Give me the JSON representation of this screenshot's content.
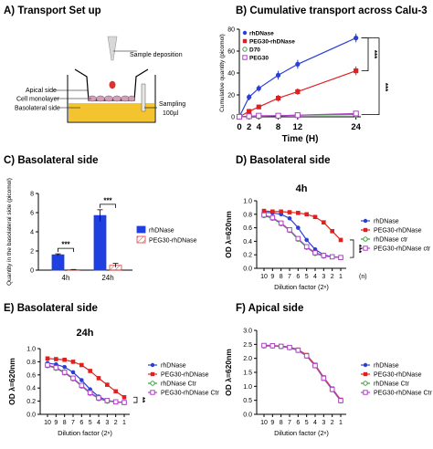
{
  "panels": {
    "A": {
      "title": "A) Transport Set up"
    },
    "B": {
      "title": "B) Cumulative transport across Calu-3"
    },
    "C": {
      "title": "C) Basolateral side"
    },
    "D": {
      "title": "D) Basolateral side"
    },
    "E": {
      "title": "E) Basolateral side"
    },
    "F": {
      "title": "F) Apical side"
    }
  },
  "schematic": {
    "sample_deposition": "Sample deposition",
    "apical_side": "Apical side",
    "cell_monolayer": "Cell monolayer",
    "basolateral_side": "Basolateral side",
    "sampling": "Sampling",
    "sampling_volume": "100µl",
    "colors": {
      "medium": "#f4c430",
      "drop": "#d9342b",
      "cells": "#cfa0b8"
    }
  },
  "chart_data": [
    {
      "id": "B",
      "type": "line",
      "title": "",
      "xlabel": "Time  (H)",
      "ylabel": "Cumulative quantity (picomol)",
      "xticks": [
        0,
        2,
        4,
        8,
        12,
        24
      ],
      "yticks": [
        0,
        20,
        40,
        60,
        80
      ],
      "xlim": [
        0,
        25
      ],
      "ylim": [
        0,
        80
      ],
      "legend_position": "top-left",
      "annotations": [
        "***",
        "***"
      ],
      "x": [
        0,
        2,
        4,
        8,
        12,
        24
      ],
      "series": [
        {
          "name": "rhDNase",
          "color": "#2b3fd6",
          "marker": "circle",
          "values": [
            0,
            18,
            26,
            38,
            48,
            72
          ],
          "errors": [
            1,
            3,
            3,
            4,
            4,
            4
          ]
        },
        {
          "name": "PEG30-rhDNase",
          "color": "#e02020",
          "marker": "square",
          "values": [
            0,
            5,
            9,
            17,
            23,
            42
          ],
          "errors": [
            0.5,
            1.5,
            2,
            3,
            3,
            4
          ]
        },
        {
          "name": "D70",
          "color": "#3aa13a",
          "marker": "circle-open",
          "values": [
            0,
            0.5,
            0.5,
            1,
            1.5,
            2
          ],
          "errors": [
            0,
            0,
            0,
            0,
            0,
            0
          ]
        },
        {
          "name": "PEG30",
          "color": "#b040c8",
          "marker": "square-open",
          "values": [
            0,
            0.5,
            1,
            1,
            1.5,
            3
          ],
          "errors": [
            0,
            0,
            0,
            0,
            0,
            0
          ]
        }
      ]
    },
    {
      "id": "C",
      "type": "bar",
      "title": "",
      "xlabel": "",
      "ylabel": "Quantity in the basolateral side (picomol)",
      "categories": [
        "4h",
        "24h"
      ],
      "yticks": [
        0,
        2,
        4,
        6,
        8
      ],
      "ylim": [
        0,
        8
      ],
      "legend_position": "right",
      "annotations": [
        "***",
        "***"
      ],
      "series": [
        {
          "name": "rhDNase",
          "color": "#1f3fe0",
          "fill": "solid",
          "values": [
            1.6,
            5.7
          ],
          "errors": [
            0.1,
            0.6
          ]
        },
        {
          "name": "PEG30-rhDNase",
          "color": "#e04040",
          "fill": "hatched",
          "values": [
            0.05,
            0.5
          ],
          "errors": [
            0.02,
            0.2
          ]
        }
      ]
    },
    {
      "id": "D",
      "type": "line",
      "title": "4h",
      "xlabel": "Dilution factor (2ⁿ)",
      "xunit": "(n)",
      "ylabel": "OD λ=620nm",
      "xticks": [
        "10",
        "9",
        "8",
        "7",
        "6",
        "5",
        "4",
        "3",
        "2",
        "1"
      ],
      "yticks": [
        0.0,
        0.2,
        0.4,
        0.6,
        0.8,
        1.0
      ],
      "ylim": [
        0,
        1.0
      ],
      "legend_position": "right",
      "annotations": [
        "***"
      ],
      "series": [
        {
          "name": "rhDNase",
          "color": "#2b3fd6",
          "marker": "circle",
          "values": [
            0.83,
            0.82,
            0.8,
            0.74,
            0.6,
            0.42,
            0.28,
            0.2,
            0.17,
            0.16
          ]
        },
        {
          "name": "PEG30-rhDNase",
          "color": "#e02020",
          "marker": "square",
          "values": [
            0.85,
            0.84,
            0.84,
            0.83,
            0.82,
            0.8,
            0.76,
            0.68,
            0.55,
            0.42
          ]
        },
        {
          "name": "rhDNase ctr",
          "color": "#3aa13a",
          "marker": "circle-open",
          "values": [
            0.78,
            0.74,
            0.66,
            0.56,
            0.43,
            0.31,
            0.22,
            0.18,
            0.17,
            0.16
          ]
        },
        {
          "name": "PEG30-rhDNase ctr",
          "color": "#b040c8",
          "marker": "square-open",
          "values": [
            0.79,
            0.75,
            0.67,
            0.57,
            0.44,
            0.32,
            0.23,
            0.19,
            0.17,
            0.16
          ]
        }
      ]
    },
    {
      "id": "E",
      "type": "line",
      "title": "24h",
      "xlabel": "Dilution factor (2ⁿ)",
      "ylabel": "OD λ=620nm",
      "xticks": [
        "10",
        "9",
        "8",
        "7",
        "6",
        "5",
        "4",
        "3",
        "2",
        "1"
      ],
      "yticks": [
        0.0,
        0.2,
        0.4,
        0.6,
        0.8,
        1.0
      ],
      "ylim": [
        0,
        1.0
      ],
      "legend_position": "right",
      "annotations": [
        "**"
      ],
      "series": [
        {
          "name": "rhDNase",
          "color": "#2b3fd6",
          "marker": "circle",
          "values": [
            0.78,
            0.76,
            0.72,
            0.64,
            0.52,
            0.38,
            0.27,
            0.21,
            0.19,
            0.18
          ]
        },
        {
          "name": "PEG30-rhDNase",
          "color": "#e02020",
          "marker": "square",
          "values": [
            0.85,
            0.84,
            0.83,
            0.8,
            0.75,
            0.66,
            0.55,
            0.45,
            0.35,
            0.26
          ]
        },
        {
          "name": "rhDNase Ctr",
          "color": "#3aa13a",
          "marker": "circle-open",
          "values": [
            0.74,
            0.7,
            0.63,
            0.54,
            0.43,
            0.32,
            0.24,
            0.2,
            0.19,
            0.18
          ]
        },
        {
          "name": "PEG30-rhDNase Ctr",
          "color": "#b040c8",
          "marker": "square-open",
          "values": [
            0.75,
            0.71,
            0.64,
            0.55,
            0.44,
            0.33,
            0.25,
            0.21,
            0.19,
            0.18
          ]
        }
      ]
    },
    {
      "id": "F",
      "type": "line",
      "title": "",
      "xlabel": "Dilution factor (2ⁿ)",
      "ylabel": "OD λ=620nm",
      "xticks": [
        "10",
        "9",
        "8",
        "7",
        "6",
        "5",
        "4",
        "3",
        "2",
        "1"
      ],
      "yticks": [
        0.0,
        0.5,
        1.0,
        1.5,
        2.0,
        2.5,
        3.0
      ],
      "ylim": [
        0,
        3.0
      ],
      "legend_position": "right",
      "annotations": [],
      "series": [
        {
          "name": "rhDNase",
          "color": "#2b3fd6",
          "marker": "circle",
          "values": [
            2.45,
            2.45,
            2.43,
            2.4,
            2.3,
            2.1,
            1.75,
            1.3,
            0.9,
            0.5
          ]
        },
        {
          "name": "PEG30-rhDNase",
          "color": "#e02020",
          "marker": "square",
          "values": [
            2.47,
            2.46,
            2.44,
            2.4,
            2.31,
            2.12,
            1.77,
            1.32,
            0.92,
            0.52
          ]
        },
        {
          "name": "rhDNase Ctr",
          "color": "#3aa13a",
          "marker": "circle-open",
          "values": [
            2.44,
            2.44,
            2.42,
            2.38,
            2.28,
            2.08,
            1.73,
            1.28,
            0.88,
            0.48
          ]
        },
        {
          "name": "PEG30-rhDNase Ctr",
          "color": "#b040c8",
          "marker": "square-open",
          "values": [
            2.46,
            2.45,
            2.43,
            2.39,
            2.29,
            2.09,
            1.74,
            1.29,
            0.89,
            0.49
          ]
        }
      ]
    }
  ]
}
